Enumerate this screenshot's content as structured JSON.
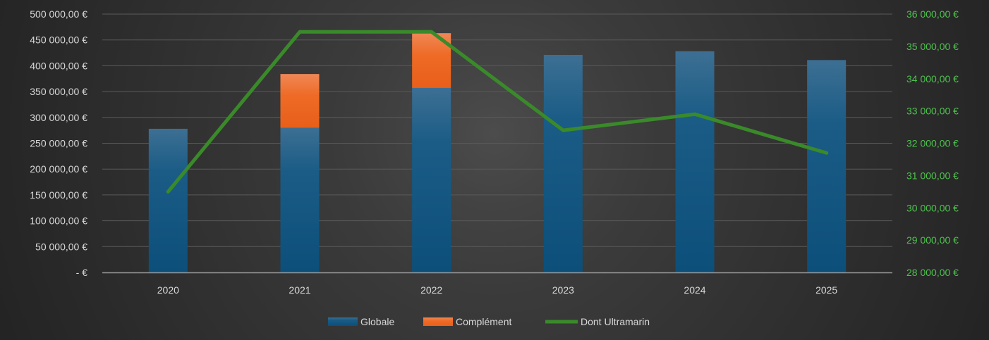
{
  "chart_data": {
    "type": "bar",
    "stacked": true,
    "categories": [
      "2020",
      "2021",
      "2022",
      "2023",
      "2024",
      "2025"
    ],
    "series": [
      {
        "name": "Globale",
        "kind": "bar",
        "axis": "left",
        "color": "#1f5f8b",
        "values": [
          278000,
          280000,
          357000,
          421000,
          428000,
          411000
        ]
      },
      {
        "name": "Complément",
        "kind": "bar",
        "axis": "left",
        "color": "#ed6a22",
        "values": [
          0,
          104000,
          106000,
          0,
          0,
          0
        ]
      },
      {
        "name": "Dont Ultramarin",
        "kind": "line",
        "axis": "right",
        "color": "#3a8a2a",
        "values": [
          30500,
          35450,
          35450,
          32400,
          32900,
          31700
        ]
      }
    ],
    "y_left": {
      "range": [
        0,
        500000
      ],
      "tick_labels": [
        "- €",
        "50 000,00 €",
        "100 000,00 €",
        "150 000,00 €",
        "200 000,00 €",
        "250 000,00 €",
        "300 000,00 €",
        "350 000,00 €",
        "400 000,00 €",
        "450 000,00 €",
        "500 000,00 €"
      ]
    },
    "y_right": {
      "range": [
        28000,
        36000
      ],
      "tick_labels": [
        "28 000,00 €",
        "29 000,00 €",
        "30 000,00 €",
        "31 000,00 €",
        "32 000,00 €",
        "33 000,00 €",
        "34 000,00 €",
        "35 000,00 €",
        "36 000,00 €"
      ],
      "color": "#4ec24e"
    },
    "grid": true,
    "legend_position": "bottom",
    "legend": [
      "Globale",
      "Complément",
      "Dont Ultramarin"
    ],
    "title": "",
    "xlabel": "",
    "ylabel": ""
  }
}
